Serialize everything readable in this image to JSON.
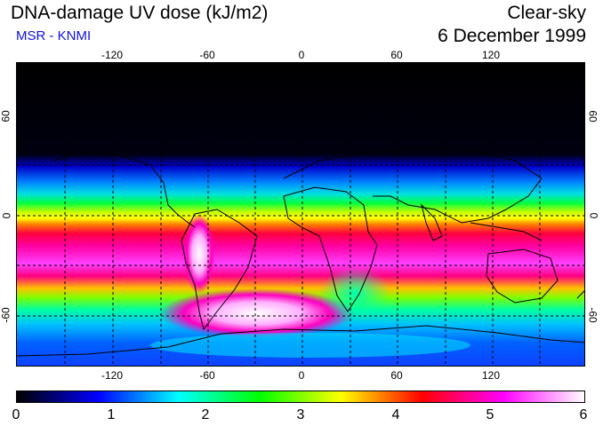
{
  "header": {
    "title": "DNA-damage UV dose (kJ/m2)",
    "subtitle": "MSR - KNMI",
    "condition": "Clear-sky",
    "date": "6 December 1999"
  },
  "map": {
    "lon_ticks": [
      "-120",
      "-60",
      "0",
      "60",
      "120"
    ],
    "lat_ticks_left": [
      "60",
      "0",
      "-60"
    ],
    "lat_ticks_right": [
      "60",
      "0",
      "-60"
    ],
    "grid": "dashed 30-degree graticule"
  },
  "colorbar": {
    "labels": [
      "0",
      "1",
      "2",
      "3",
      "4",
      "5",
      "6"
    ],
    "min": 0,
    "max": 6,
    "colors": [
      "#000000",
      "#0000ff",
      "#00ffff",
      "#00ff00",
      "#ffff00",
      "#ff0000",
      "#ff00ff",
      "#ffffff"
    ]
  },
  "colors": {
    "subtitle": "#1010e0"
  }
}
